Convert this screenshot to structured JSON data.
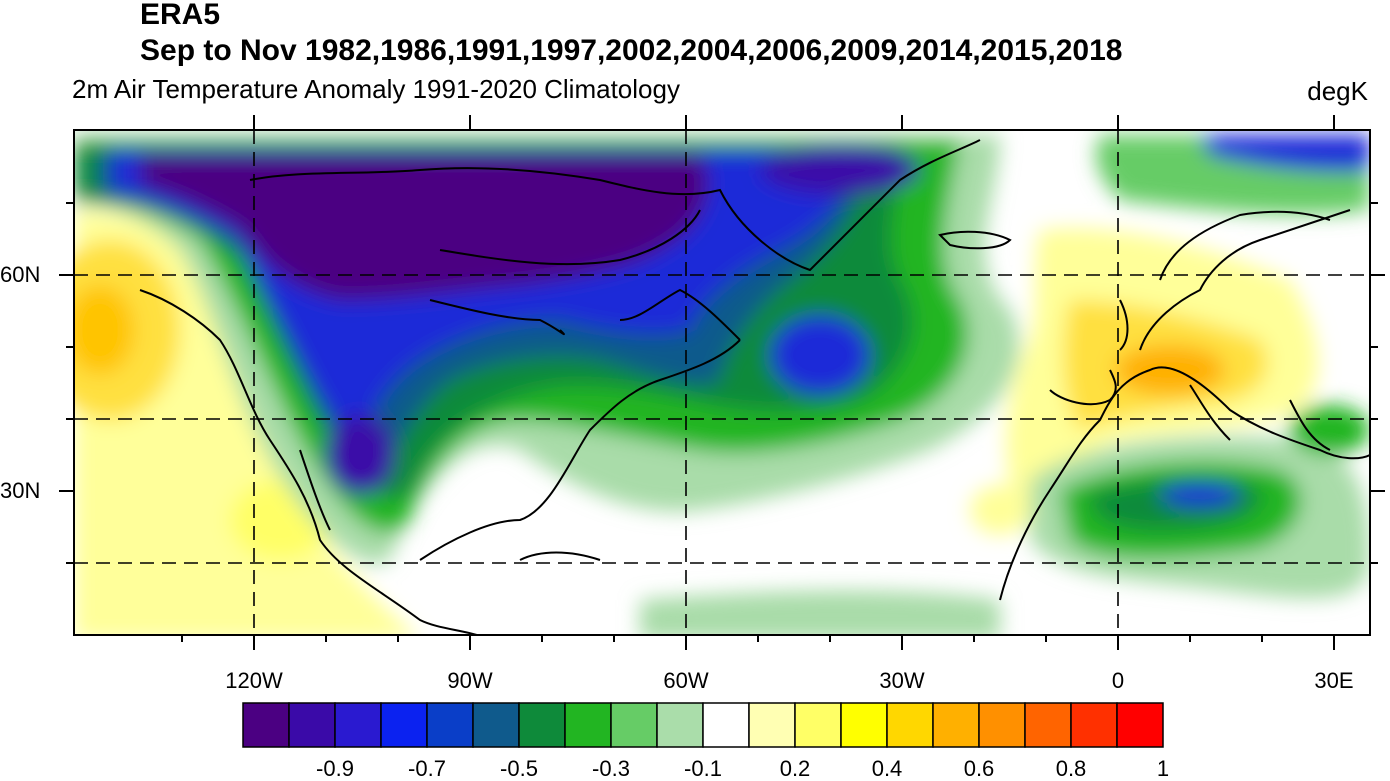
{
  "header": {
    "dataset": "ERA5",
    "period": "Sep to Nov 1982,1986,1991,1997,2002,2004,2006,2009,2014,2015,2018",
    "variable": "2m Air Temperature Anomaly  1991-2020 Climatology",
    "units": "degK"
  },
  "axes": {
    "lat_labels": [
      "60N",
      "30N"
    ],
    "lon_labels": [
      "120W",
      "90W",
      "60W",
      "30W",
      "0",
      "30E"
    ]
  },
  "colorbar": {
    "colors": [
      "#4b0082",
      "#3a0aa8",
      "#2a1ad0",
      "#0b22f0",
      "#0a3ec8",
      "#0f5a8c",
      "#0e8a3a",
      "#22b522",
      "#66cc66",
      "#aaddaa",
      "#ffffff",
      "#ffffb3",
      "#ffff66",
      "#ffff00",
      "#ffd700",
      "#ffb000",
      "#ff9000",
      "#ff6400",
      "#ff3000",
      "#ff0000"
    ],
    "labels": [
      "-0.9",
      "-0.7",
      "-0.5",
      "-0.3",
      "-0.1",
      "0.2",
      "0.4",
      "0.6",
      "0.8",
      "1"
    ]
  },
  "colors": {
    "deep_purple": "#4b0082",
    "blue": "#1a2ad8",
    "teal": "#0f5a8c",
    "dark_green": "#0e8a3a",
    "green": "#22b522",
    "light_green": "#aaddaa",
    "pale_yellow": "#ffffb3",
    "yellow": "#ffff00",
    "orange": "#ffb000"
  }
}
